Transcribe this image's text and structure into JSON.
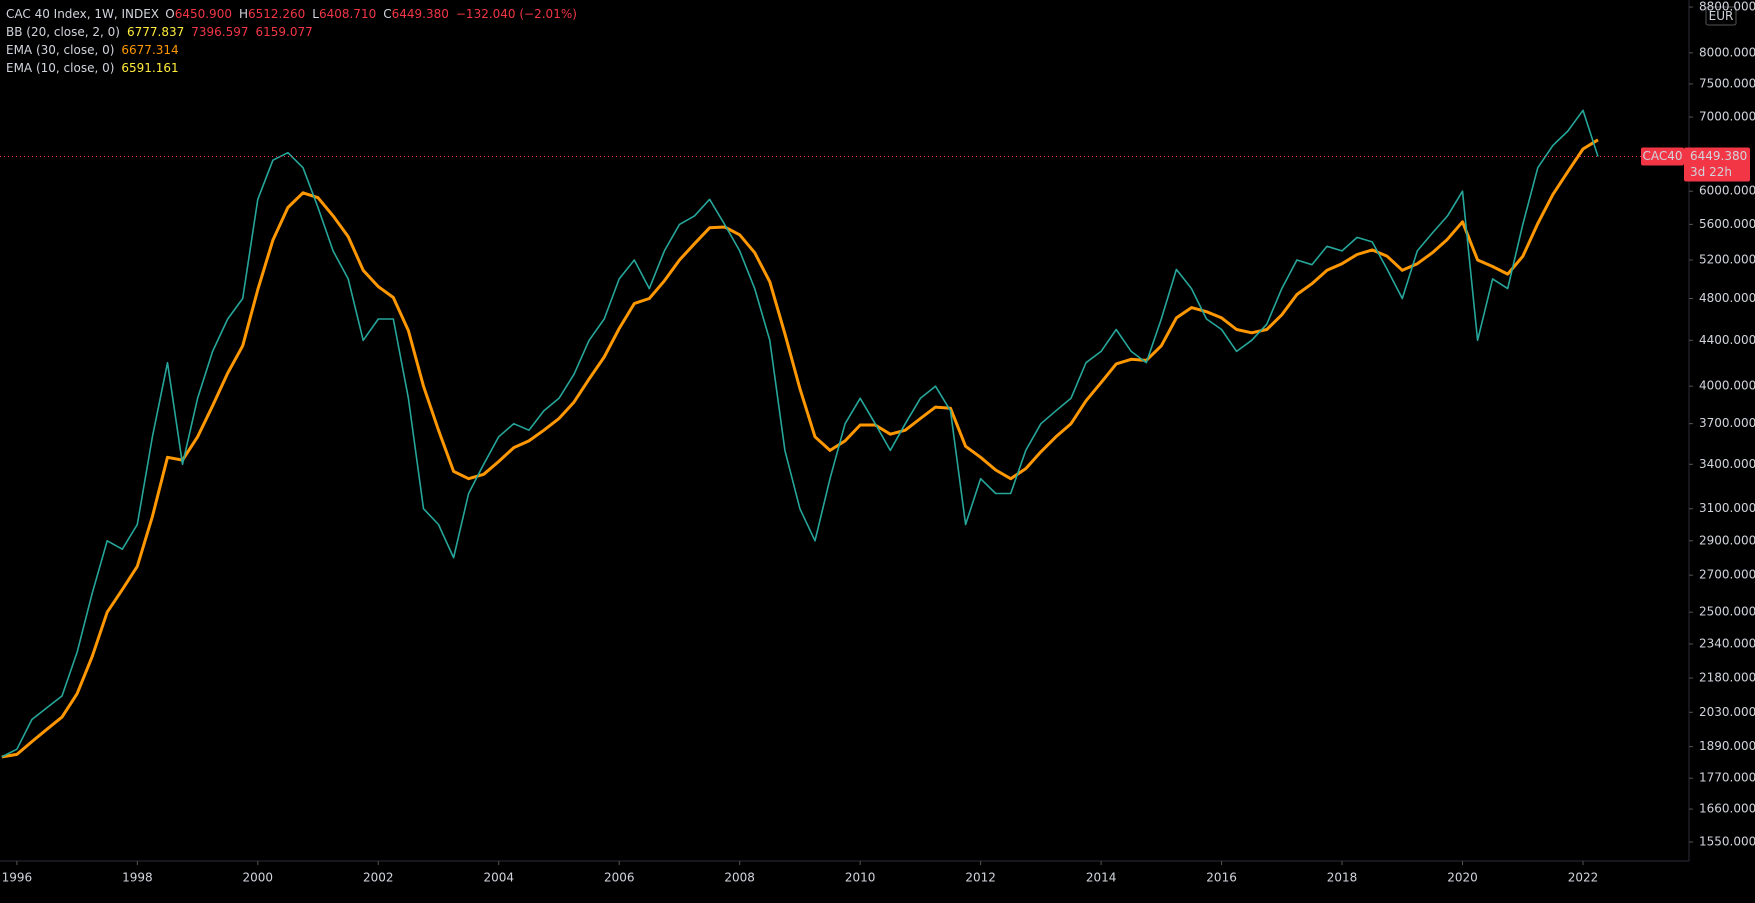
{
  "chart_data": {
    "type": "line",
    "title": "CAC 40 Index, 1W, INDEX",
    "ohlc": [
      {
        "label": "O",
        "value": "6450.900"
      },
      {
        "label": "H",
        "value": "6512.260"
      },
      {
        "label": "L",
        "value": "6408.710"
      },
      {
        "label": "C",
        "value": "6449.380"
      }
    ],
    "change": "−132.040 (−2.01%)",
    "indicators": [
      {
        "name": "BB (20, close, 2, 0)",
        "values": [
          "6777.837",
          "7396.597",
          "6159.077"
        ]
      },
      {
        "name": "EMA (10, close, 0)",
        "values": [
          "6591.161"
        ]
      }
    ],
    "currency": "EUR",
    "last_price": {
      "value": 6449.38,
      "label": "6449.380"
    },
    "countdown": "3d 22h",
    "log": true,
    "grid": false,
    "xlim": [
      1995.72,
      2023.76
    ],
    "ylim": [
      1490,
      8930
    ],
    "xticks": [
      1996,
      1998,
      2000,
      2002,
      2004,
      2006,
      2008,
      2010,
      2012,
      2014,
      2016,
      2018,
      2020,
      2022
    ],
    "yticks": [
      {
        "value": 1550,
        "label": "1550.000"
      },
      {
        "value": 1660,
        "label": "1660.000"
      },
      {
        "value": 1770,
        "label": "1770.000"
      },
      {
        "value": 1890,
        "label": "1890.000"
      },
      {
        "value": 2030,
        "label": "2030.000"
      },
      {
        "value": 2180,
        "label": "2180.000"
      },
      {
        "value": 2340,
        "label": "2340.000"
      },
      {
        "value": 2500,
        "label": "2500.000"
      },
      {
        "value": 2700,
        "label": "2700.000"
      },
      {
        "value": 2900,
        "label": "2900.000"
      },
      {
        "value": 3100,
        "label": "3100.000"
      },
      {
        "value": 3400,
        "label": "3400.000"
      },
      {
        "value": 3700,
        "label": "3700.000"
      },
      {
        "value": 4000,
        "label": "4000.000"
      },
      {
        "value": 4400,
        "label": "4400.000"
      },
      {
        "value": 4800,
        "label": "4800.000"
      },
      {
        "value": 5200,
        "label": "5200.000"
      },
      {
        "value": 5600,
        "label": "5600.000"
      },
      {
        "value": 6000,
        "label": "6000.000"
      },
      {
        "value": 7000,
        "label": "7000.000"
      },
      {
        "value": 7500,
        "label": "7500.000"
      },
      {
        "value": 8000,
        "label": "8000.000"
      },
      {
        "value": 8800,
        "label": "8800.000"
      }
    ],
    "x": [
      1995.75,
      1996,
      1996.25,
      1996.5,
      1996.75,
      1997,
      1997.25,
      1997.5,
      1997.75,
      1998,
      1998.25,
      1998.5,
      1998.75,
      1999,
      1999.25,
      1999.5,
      1999.75,
      2000,
      2000.25,
      2000.5,
      2000.75,
      2001,
      2001.25,
      2001.5,
      2001.75,
      2002,
      2002.25,
      2002.5,
      2002.75,
      2003,
      2003.25,
      2003.5,
      2003.75,
      2004,
      2004.25,
      2004.5,
      2004.75,
      2005,
      2005.25,
      2005.5,
      2005.75,
      2006,
      2006.25,
      2006.5,
      2006.75,
      2007,
      2007.25,
      2007.5,
      2007.75,
      2008,
      2008.25,
      2008.5,
      2008.75,
      2009,
      2009.25,
      2009.5,
      2009.75,
      2010,
      2010.25,
      2010.5,
      2010.75,
      2011,
      2011.25,
      2011.5,
      2011.75,
      2012,
      2012.25,
      2012.5,
      2012.75,
      2013,
      2013.25,
      2013.5,
      2013.75,
      2014,
      2014.25,
      2014.5,
      2014.75,
      2015,
      2015.25,
      2015.5,
      2015.75,
      2016,
      2016.25,
      2016.5,
      2016.75,
      2017,
      2017.25,
      2017.5,
      2017.75,
      2018,
      2018.25,
      2018.5,
      2018.75,
      2019,
      2019.25,
      2019.5,
      2019.75,
      2020,
      2020.25,
      2020.5,
      2020.75,
      2021,
      2021.25,
      2021.5,
      2021.75,
      2022,
      2022.25
    ],
    "series": [
      {
        "name": "CAC40",
        "color": "#26a69a",
        "values": [
          1850,
          1880,
          2000,
          2050,
          2100,
          2300,
          2600,
          2900,
          2850,
          3000,
          3600,
          4200,
          3400,
          3900,
          4300,
          4600,
          4800,
          5900,
          6400,
          6500,
          6300,
          5800,
          5300,
          5000,
          4400,
          4600,
          4600,
          3900,
          3100,
          3000,
          2800,
          3200,
          3400,
          3600,
          3700,
          3650,
          3800,
          3900,
          4100,
          4400,
          4600,
          5000,
          5200,
          4900,
          5300,
          5600,
          5700,
          5900,
          5600,
          5300,
          4900,
          4400,
          3500,
          3100,
          2900,
          3300,
          3700,
          3900,
          3700,
          3500,
          3700,
          3900,
          4000,
          3800,
          3000,
          3300,
          3200,
          3200,
          3500,
          3700,
          3800,
          3900,
          4200,
          4300,
          4500,
          4300,
          4200,
          4600,
          5100,
          4900,
          4600,
          4500,
          4300,
          4400,
          4550,
          4900,
          5200,
          5150,
          5350,
          5300,
          5450,
          5400,
          5100,
          4800,
          5300,
          5500,
          5700,
          6000,
          4400,
          5000,
          4900,
          5600,
          6300,
          6600,
          6800,
          7100,
          6449.38
        ]
      },
      {
        "name": "EMA (30, close, 0)",
        "last_label": "6677.314",
        "color": "#ff9800",
        "values": [
          1850,
          1860,
          1910,
          1960,
          2010,
          2110,
          2280,
          2500,
          2620,
          2750,
          3050,
          3450,
          3430,
          3600,
          3840,
          4110,
          4350,
          4890,
          5420,
          5800,
          5980,
          5920,
          5700,
          5460,
          5090,
          4920,
          4810,
          4490,
          4000,
          3650,
          3350,
          3300,
          3330,
          3420,
          3520,
          3570,
          3650,
          3740,
          3870,
          4060,
          4250,
          4510,
          4750,
          4800,
          4980,
          5200,
          5380,
          5560,
          5570,
          5480,
          5280,
          4970,
          4460,
          3980,
          3600,
          3500,
          3570,
          3690,
          3690,
          3620,
          3650,
          3740,
          3830,
          3820,
          3530,
          3450,
          3360,
          3300,
          3370,
          3490,
          3600,
          3700,
          3880,
          4030,
          4190,
          4230,
          4220,
          4350,
          4610,
          4710,
          4670,
          4610,
          4500,
          4470,
          4500,
          4640,
          4840,
          4950,
          5090,
          5160,
          5260,
          5310,
          5240,
          5090,
          5160,
          5280,
          5430,
          5630,
          5200,
          5130,
          5050,
          5240,
          5610,
          5960,
          6250,
          6550,
          6677.314
        ]
      }
    ]
  }
}
